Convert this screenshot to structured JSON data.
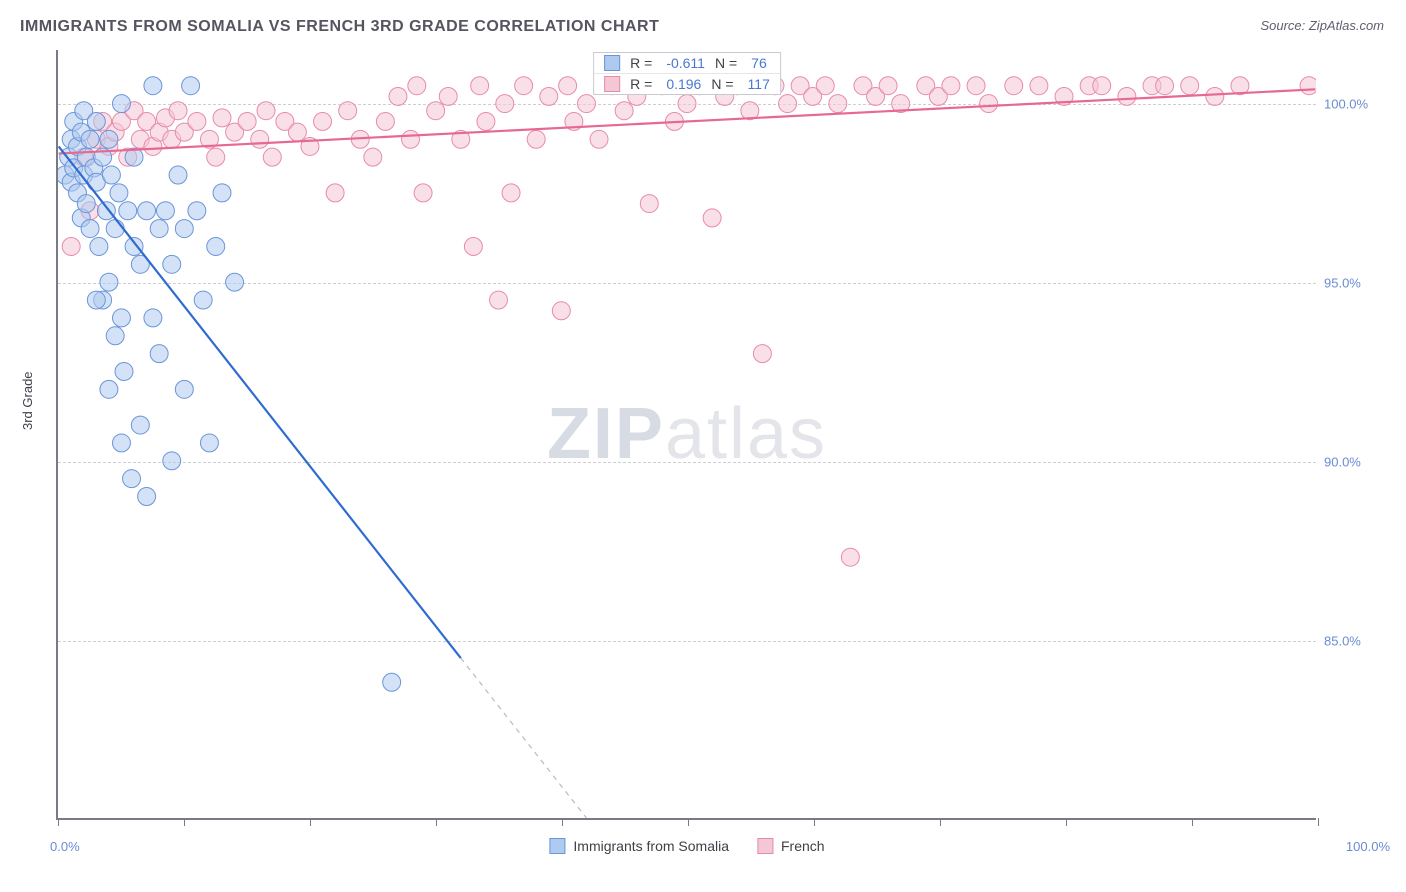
{
  "title": "IMMIGRANTS FROM SOMALIA VS FRENCH 3RD GRADE CORRELATION CHART",
  "source": "Source: ZipAtlas.com",
  "watermark_zip": "ZIP",
  "watermark_atlas": "atlas",
  "ylabel": "3rd Grade",
  "chart": {
    "type": "scatter",
    "background_color": "#ffffff",
    "grid_color": "#cfcfd3",
    "axis_color": "#7a7a85",
    "xlim": [
      0,
      100
    ],
    "ylim": [
      80,
      101.5
    ],
    "y_ticks": [
      85.0,
      90.0,
      95.0,
      100.0
    ],
    "y_tick_labels": [
      "85.0%",
      "90.0%",
      "95.0%",
      "100.0%"
    ],
    "x_ticks": [
      0,
      10,
      20,
      30,
      40,
      50,
      60,
      70,
      80,
      90,
      100
    ],
    "x_tick_label_left": "0.0%",
    "x_tick_label_right": "100.0%",
    "marker_radius": 9,
    "marker_opacity": 0.55,
    "line_width": 2.2,
    "title_fontsize": 16,
    "label_fontsize": 13
  },
  "series": {
    "somalia": {
      "label": "Immigrants from Somalia",
      "marker_fill": "#aecaef",
      "marker_stroke": "#6b95d9",
      "line_color": "#2f6bd0",
      "line_dash_after_x": 32,
      "r": "-0.611",
      "n": "76",
      "trend": {
        "x1": 0,
        "y1": 98.8,
        "x2": 42,
        "y2": 80.0
      },
      "points": [
        [
          0.5,
          98.0
        ],
        [
          0.8,
          98.5
        ],
        [
          1.0,
          99.0
        ],
        [
          1.0,
          97.8
        ],
        [
          1.2,
          98.2
        ],
        [
          1.2,
          99.5
        ],
        [
          1.5,
          97.5
        ],
        [
          1.5,
          98.8
        ],
        [
          1.8,
          99.2
        ],
        [
          1.8,
          96.8
        ],
        [
          2.0,
          98.0
        ],
        [
          2.0,
          99.8
        ],
        [
          2.2,
          97.2
        ],
        [
          2.2,
          98.5
        ],
        [
          2.5,
          99.0
        ],
        [
          2.5,
          96.5
        ],
        [
          2.8,
          98.2
        ],
        [
          3.0,
          97.8
        ],
        [
          3.0,
          99.5
        ],
        [
          3.2,
          96.0
        ],
        [
          3.5,
          98.5
        ],
        [
          3.5,
          94.5
        ],
        [
          3.8,
          97.0
        ],
        [
          4.0,
          99.0
        ],
        [
          4.0,
          95.0
        ],
        [
          4.2,
          98.0
        ],
        [
          4.5,
          93.5
        ],
        [
          4.5,
          96.5
        ],
        [
          4.8,
          97.5
        ],
        [
          5.0,
          100.0
        ],
        [
          5.0,
          94.0
        ],
        [
          5.2,
          92.5
        ],
        [
          5.5,
          97.0
        ],
        [
          5.8,
          89.5
        ],
        [
          6.0,
          96.0
        ],
        [
          6.0,
          98.5
        ],
        [
          6.5,
          91.0
        ],
        [
          6.5,
          95.5
        ],
        [
          7.0,
          97.0
        ],
        [
          7.0,
          89.0
        ],
        [
          7.5,
          94.0
        ],
        [
          7.5,
          100.5
        ],
        [
          8.0,
          93.0
        ],
        [
          8.0,
          96.5
        ],
        [
          8.5,
          97.0
        ],
        [
          9.0,
          90.0
        ],
        [
          9.0,
          95.5
        ],
        [
          9.5,
          98.0
        ],
        [
          10.0,
          96.5
        ],
        [
          10.0,
          92.0
        ],
        [
          10.5,
          100.5
        ],
        [
          11.0,
          97.0
        ],
        [
          11.5,
          94.5
        ],
        [
          12.0,
          90.5
        ],
        [
          12.5,
          96.0
        ],
        [
          13.0,
          97.5
        ],
        [
          14.0,
          95.0
        ],
        [
          3.0,
          94.5
        ],
        [
          4.0,
          92.0
        ],
        [
          5.0,
          90.5
        ],
        [
          26.5,
          83.8
        ]
      ]
    },
    "french": {
      "label": "French",
      "marker_fill": "#f4c7d5",
      "marker_stroke": "#e88ba9",
      "line_color": "#e76890",
      "r": "0.196",
      "n": "117",
      "trend": {
        "x1": 0,
        "y1": 98.6,
        "x2": 100,
        "y2": 100.4
      },
      "points": [
        [
          1.0,
          96.0
        ],
        [
          2.0,
          98.5
        ],
        [
          2.5,
          97.0
        ],
        [
          3.0,
          99.0
        ],
        [
          3.5,
          99.5
        ],
        [
          4.0,
          98.8
        ],
        [
          4.5,
          99.2
        ],
        [
          5.0,
          99.5
        ],
        [
          5.5,
          98.5
        ],
        [
          6.0,
          99.8
        ],
        [
          6.5,
          99.0
        ],
        [
          7.0,
          99.5
        ],
        [
          7.5,
          98.8
        ],
        [
          8.0,
          99.2
        ],
        [
          8.5,
          99.6
        ],
        [
          9.0,
          99.0
        ],
        [
          9.5,
          99.8
        ],
        [
          10.0,
          99.2
        ],
        [
          11.0,
          99.5
        ],
        [
          12.0,
          99.0
        ],
        [
          12.5,
          98.5
        ],
        [
          13.0,
          99.6
        ],
        [
          14.0,
          99.2
        ],
        [
          15.0,
          99.5
        ],
        [
          16.0,
          99.0
        ],
        [
          16.5,
          99.8
        ],
        [
          17.0,
          98.5
        ],
        [
          18.0,
          99.5
        ],
        [
          19.0,
          99.2
        ],
        [
          20.0,
          98.8
        ],
        [
          21.0,
          99.5
        ],
        [
          22.0,
          97.5
        ],
        [
          23.0,
          99.8
        ],
        [
          24.0,
          99.0
        ],
        [
          25.0,
          98.5
        ],
        [
          26.0,
          99.5
        ],
        [
          27.0,
          100.2
        ],
        [
          28.0,
          99.0
        ],
        [
          28.5,
          100.5
        ],
        [
          29.0,
          97.5
        ],
        [
          30.0,
          99.8
        ],
        [
          31.0,
          100.2
        ],
        [
          32.0,
          99.0
        ],
        [
          33.0,
          96.0
        ],
        [
          33.5,
          100.5
        ],
        [
          34.0,
          99.5
        ],
        [
          35.0,
          94.5
        ],
        [
          35.5,
          100.0
        ],
        [
          36.0,
          97.5
        ],
        [
          37.0,
          100.5
        ],
        [
          38.0,
          99.0
        ],
        [
          39.0,
          100.2
        ],
        [
          40.0,
          94.2
        ],
        [
          40.5,
          100.5
        ],
        [
          41.0,
          99.5
        ],
        [
          42.0,
          100.0
        ],
        [
          43.0,
          99.0
        ],
        [
          44.0,
          100.5
        ],
        [
          45.0,
          99.8
        ],
        [
          46.0,
          100.2
        ],
        [
          47.0,
          97.2
        ],
        [
          48.0,
          100.5
        ],
        [
          49.0,
          99.5
        ],
        [
          50.0,
          100.0
        ],
        [
          51.0,
          100.5
        ],
        [
          52.0,
          96.8
        ],
        [
          53.0,
          100.2
        ],
        [
          54.0,
          100.5
        ],
        [
          55.0,
          99.8
        ],
        [
          56.0,
          93.0
        ],
        [
          57.0,
          100.5
        ],
        [
          58.0,
          100.0
        ],
        [
          59.0,
          100.5
        ],
        [
          60.0,
          100.2
        ],
        [
          61.0,
          100.5
        ],
        [
          62.0,
          100.0
        ],
        [
          63.0,
          87.3
        ],
        [
          64.0,
          100.5
        ],
        [
          65.0,
          100.2
        ],
        [
          66.0,
          100.5
        ],
        [
          67.0,
          100.0
        ],
        [
          69.0,
          100.5
        ],
        [
          70.0,
          100.2
        ],
        [
          71.0,
          100.5
        ],
        [
          73.0,
          100.5
        ],
        [
          74.0,
          100.0
        ],
        [
          76.0,
          100.5
        ],
        [
          78.0,
          100.5
        ],
        [
          80.0,
          100.2
        ],
        [
          82.0,
          100.5
        ],
        [
          83.0,
          100.5
        ],
        [
          85.0,
          100.2
        ],
        [
          87.0,
          100.5
        ],
        [
          88.0,
          100.5
        ],
        [
          90.0,
          100.5
        ],
        [
          92.0,
          100.2
        ],
        [
          94.0,
          100.5
        ],
        [
          99.5,
          100.5
        ]
      ]
    }
  },
  "legend_top": {
    "r_label": "R =",
    "n_label": "N ="
  }
}
